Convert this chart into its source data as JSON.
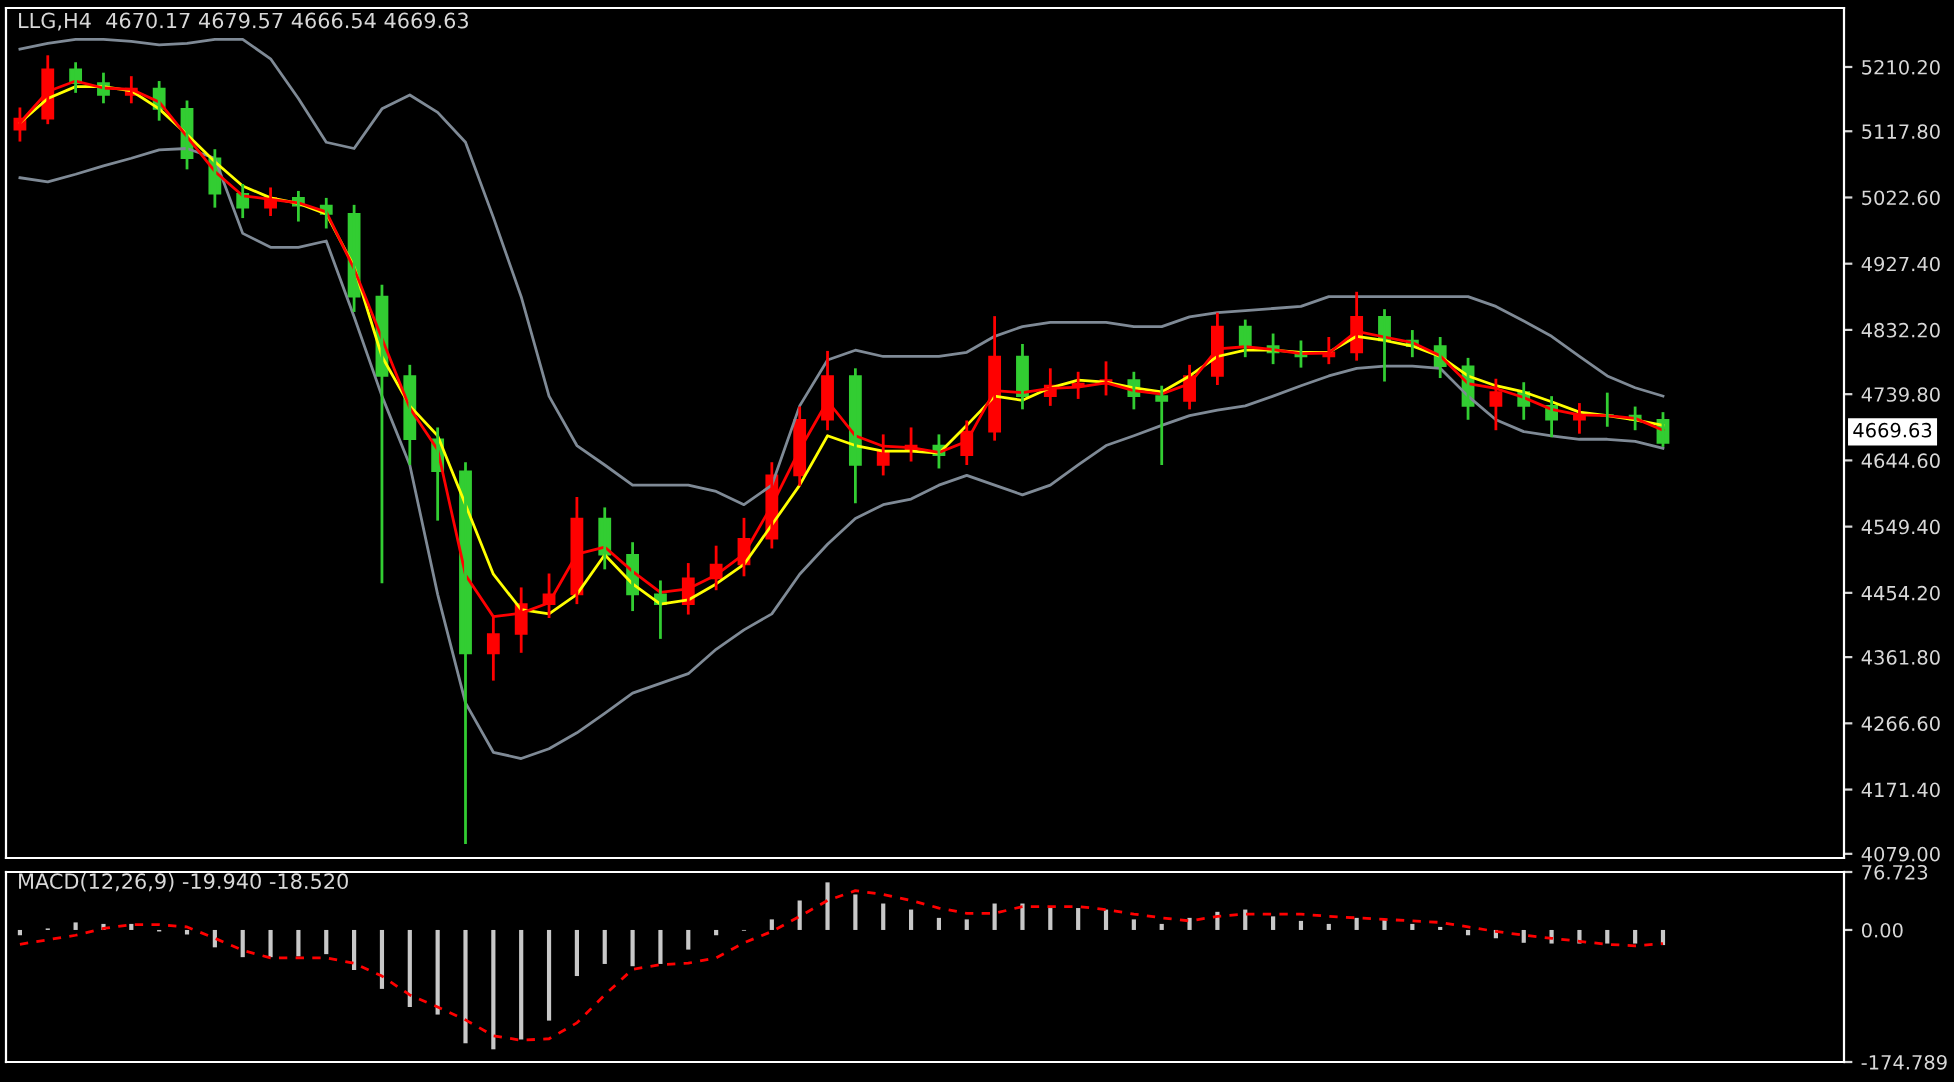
{
  "chart_data": [
    {
      "type": "candlestick",
      "title": "LLG,H4  4670.17 4679.57 4666.54 4669.63",
      "categories": [
        null,
        null,
        null,
        null,
        null,
        null,
        null,
        null,
        null,
        null,
        null,
        null,
        null,
        null,
        null,
        null,
        null,
        null,
        null,
        null,
        null,
        null,
        null,
        null,
        null,
        null,
        null,
        null,
        null,
        null,
        null,
        null,
        null,
        null,
        null,
        null,
        null,
        null,
        null,
        null,
        null,
        null,
        null,
        null,
        null,
        null,
        null,
        null,
        null,
        null,
        null,
        null,
        null,
        null,
        null,
        null,
        null,
        null,
        null,
        null
      ],
      "ohlc": [
        [
          5120,
          5150,
          5105,
          5136
        ],
        [
          5136,
          5225,
          5130,
          5207
        ],
        [
          5207,
          5215,
          5175,
          5187
        ],
        [
          5187,
          5200,
          5160,
          5170
        ],
        [
          5170,
          5195,
          5160,
          5179
        ],
        [
          5179,
          5188,
          5135,
          5150
        ],
        [
          5150,
          5160,
          5065,
          5079
        ],
        [
          5079,
          5090,
          5010,
          5028
        ],
        [
          5028,
          5040,
          4995,
          5008
        ],
        [
          5008,
          5035,
          4998,
          5022
        ],
        [
          5022,
          5030,
          4990,
          5011
        ],
        [
          5011,
          5020,
          4980,
          4999
        ],
        [
          4999,
          5010,
          4860,
          4880
        ],
        [
          4880,
          4895,
          4470,
          4766
        ],
        [
          4766,
          4780,
          4640,
          4675
        ],
        [
          4675,
          4690,
          4560,
          4629
        ],
        [
          4629,
          4640,
          4095,
          4367
        ],
        [
          4367,
          4420,
          4330,
          4395
        ],
        [
          4395,
          4460,
          4370,
          4438
        ],
        [
          4438,
          4480,
          4420,
          4452
        ],
        [
          4452,
          4590,
          4440,
          4561
        ],
        [
          4561,
          4575,
          4490,
          4509
        ],
        [
          4509,
          4525,
          4430,
          4452
        ],
        [
          4452,
          4470,
          4390,
          4438
        ],
        [
          4438,
          4495,
          4425,
          4475
        ],
        [
          4475,
          4520,
          4460,
          4495
        ],
        [
          4495,
          4560,
          4480,
          4532
        ],
        [
          4532,
          4640,
          4520,
          4623
        ],
        [
          4623,
          4720,
          4610,
          4703
        ],
        [
          4703,
          4800,
          4690,
          4766
        ],
        [
          4766,
          4775,
          4585,
          4638
        ],
        [
          4638,
          4680,
          4625,
          4658
        ],
        [
          4658,
          4690,
          4645,
          4666
        ],
        [
          4666,
          4680,
          4635,
          4652
        ],
        [
          4652,
          4700,
          4640,
          4686
        ],
        [
          4686,
          4850,
          4675,
          4794
        ],
        [
          4794,
          4810,
          4720,
          4737
        ],
        [
          4737,
          4775,
          4725,
          4752
        ],
        [
          4752,
          4770,
          4735,
          4755
        ],
        [
          4755,
          4785,
          4740,
          4760
        ],
        [
          4760,
          4770,
          4720,
          4737
        ],
        [
          4737,
          4750,
          4640,
          4730
        ],
        [
          4730,
          4780,
          4720,
          4766
        ],
        [
          4766,
          4855,
          4755,
          4837
        ],
        [
          4837,
          4845,
          4795,
          4809
        ],
        [
          4809,
          4825,
          4785,
          4800
        ],
        [
          4800,
          4815,
          4780,
          4794
        ],
        [
          4794,
          4820,
          4785,
          4800
        ],
        [
          4800,
          4885,
          4790,
          4851
        ],
        [
          4851,
          4860,
          4760,
          4817
        ],
        [
          4817,
          4830,
          4795,
          4809
        ],
        [
          4809,
          4820,
          4765,
          4780
        ],
        [
          4780,
          4790,
          4705,
          4723
        ],
        [
          4723,
          4760,
          4690,
          4743
        ],
        [
          4743,
          4755,
          4705,
          4723
        ],
        [
          4723,
          4735,
          4680,
          4703
        ],
        [
          4703,
          4725,
          4685,
          4710
        ],
        [
          4710,
          4740,
          4695,
          4709
        ],
        [
          4709,
          4720,
          4690,
          4703
        ],
        [
          4703,
          4712,
          4666,
          4669.63
        ]
      ],
      "colors": [
        "#ff0000",
        "#ff0000",
        "#32cd32",
        "#32cd32",
        "#ff0000",
        "#32cd32",
        "#32cd32",
        "#32cd32",
        "#32cd32",
        "#ff0000",
        "#32cd32",
        "#32cd32",
        "#32cd32",
        "#32cd32",
        "#32cd32",
        "#32cd32",
        "#32cd32",
        "#ff0000",
        "#ff0000",
        "#ff0000",
        "#ff0000",
        "#32cd32",
        "#32cd32",
        "#32cd32",
        "#ff0000",
        "#ff0000",
        "#ff0000",
        "#ff0000",
        "#ff0000",
        "#ff0000",
        "#32cd32",
        "#ff0000",
        "#ff0000",
        "#32cd32",
        "#ff0000",
        "#ff0000",
        "#32cd32",
        "#ff0000",
        "#ff0000",
        "#ff0000",
        "#32cd32",
        "#32cd32",
        "#ff0000",
        "#ff0000",
        "#32cd32",
        "#32cd32",
        "#32cd32",
        "#ff0000",
        "#ff0000",
        "#32cd32",
        "#32cd32",
        "#32cd32",
        "#32cd32",
        "#ff0000",
        "#32cd32",
        "#32cd32",
        "#ff0000",
        "#32cd32",
        "#32cd32",
        "#32cd32"
      ],
      "series": [
        {
          "type": "line",
          "color": "#7f8a96",
          "values": [
            5236,
            5244,
            5250,
            5250,
            5247,
            5242,
            5244,
            5250,
            5250,
            5222,
            5165,
            5102,
            5093,
            5150,
            5170,
            5145,
            5102,
            4994,
            4880,
            4737,
            4666,
            4638,
            4609,
            4609,
            4609,
            4600,
            4581,
            4609,
            4723,
            4789,
            4803,
            4794,
            4794,
            4794,
            4800,
            4823,
            4837,
            4843,
            4843,
            4843,
            4837,
            4837,
            4851,
            4857,
            4860,
            4863,
            4866,
            4880,
            4880,
            4880,
            4880,
            4880,
            4880,
            4866,
            4845,
            4823,
            4794,
            4766,
            4749,
            4737
          ]
        },
        {
          "type": "line",
          "color": "#7f8a96",
          "values": [
            5051,
            5045,
            5056,
            5068,
            5079,
            5091,
            5093,
            5079,
            4971,
            4951,
            4951,
            4960,
            4851,
            4737,
            4638,
            4452,
            4296,
            4225,
            4216,
            4230,
            4253,
            4281,
            4310,
            4324,
            4338,
            4373,
            4401,
            4424,
            4481,
            4524,
            4561,
            4581,
            4589,
            4609,
            4623,
            4609,
            4595,
            4609,
            4638,
            4666,
            4680,
            4695,
            4709,
            4717,
            4723,
            4737,
            4752,
            4766,
            4777,
            4780,
            4780,
            4777,
            4737,
            4703,
            4686,
            4680,
            4675,
            4675,
            4672,
            4662
          ]
        },
        {
          "type": "line",
          "color": "#ffff00",
          "values": [
            5130,
            5165,
            5182,
            5182,
            5176,
            5150,
            5113,
            5074,
            5039,
            5022,
            5014,
            4999,
            4923,
            4794,
            4723,
            4680,
            4581,
            4481,
            4430,
            4424,
            4452,
            4509,
            4467,
            4438,
            4444,
            4467,
            4495,
            4552,
            4609,
            4680,
            4666,
            4658,
            4658,
            4655,
            4695,
            4737,
            4731,
            4749,
            4760,
            4757,
            4749,
            4743,
            4766,
            4794,
            4803,
            4803,
            4800,
            4800,
            4823,
            4817,
            4809,
            4794,
            4766,
            4752,
            4743,
            4729,
            4714,
            4709,
            4703,
            4695
          ]
        },
        {
          "type": "line",
          "color": "#ff0000",
          "values": [
            5130,
            5175,
            5190,
            5180,
            5178,
            5160,
            5110,
            5060,
            5025,
            5020,
            5015,
            5002,
            4920,
            4820,
            4720,
            4660,
            4480,
            4420,
            4425,
            4440,
            4510,
            4520,
            4485,
            4455,
            4460,
            4480,
            4510,
            4580,
            4660,
            4730,
            4680,
            4665,
            4663,
            4656,
            4672,
            4745,
            4742,
            4748,
            4750,
            4756,
            4745,
            4740,
            4755,
            4805,
            4808,
            4804,
            4798,
            4799,
            4830,
            4822,
            4814,
            4795,
            4755,
            4748,
            4735,
            4718,
            4710,
            4709,
            4705,
            4688
          ]
        }
      ],
      "ylim": [
        4073,
        5295
      ],
      "yticks": [
        {
          "value": 5210.2,
          "label": "5210.20"
        },
        {
          "value": 5117.8,
          "label": "5117.80"
        },
        {
          "value": 5022.6,
          "label": "5022.60"
        },
        {
          "value": 4927.4,
          "label": "4927.40"
        },
        {
          "value": 4832.2,
          "label": "4832.20"
        },
        {
          "value": 4739.8,
          "label": "4739.80"
        },
        {
          "value": 4644.6,
          "label": "4644.60"
        },
        {
          "value": 4549.4,
          "label": "4549.40"
        },
        {
          "value": 4454.2,
          "label": "4454.20"
        },
        {
          "value": 4361.8,
          "label": "4361.80"
        },
        {
          "value": 4266.6,
          "label": "4266.60"
        },
        {
          "value": 4171.4,
          "label": "4171.40"
        },
        {
          "value": 4079,
          "label": "4079.00"
        }
      ],
      "annotations": [
        "4669.63"
      ],
      "tick_labels": "y",
      "grid": false
    },
    {
      "type": "bar",
      "title": "MACD(12,26,9) -19.940 -18.520",
      "categories": [
        null,
        null,
        null,
        null,
        null,
        null,
        null,
        null,
        null,
        null,
        null,
        null,
        null,
        null,
        null,
        null,
        null,
        null,
        null,
        null,
        null,
        null,
        null,
        null,
        null,
        null,
        null,
        null,
        null,
        null,
        null,
        null,
        null,
        null,
        null,
        null,
        null,
        null,
        null,
        null,
        null,
        null,
        null,
        null,
        null,
        null,
        null,
        null,
        null,
        null,
        null,
        null,
        null,
        null,
        null,
        null,
        null,
        null,
        null,
        null
      ],
      "series": [
        {
          "type": "bar",
          "color": "#c8c8c8",
          "values": [
            -7,
            2,
            10,
            8,
            8,
            -2,
            -6,
            -23,
            -36,
            -36,
            -35,
            -32,
            -53,
            -78,
            -102,
            -112,
            -150,
            -158,
            -145,
            -120,
            -61,
            -45,
            -48,
            -45,
            -26,
            -7,
            -1,
            14,
            39,
            63,
            47,
            35,
            27,
            16,
            14,
            35,
            35,
            29,
            29,
            27,
            14,
            8,
            16,
            24,
            27,
            18,
            12,
            8,
            16,
            14,
            8,
            4,
            -7,
            -11,
            -17,
            -18,
            -18,
            -18,
            -18,
            -20
          ]
        },
        {
          "type": "line",
          "color": "#ff0000",
          "line_style": "dashed",
          "values": [
            -19,
            -13,
            -7,
            2,
            7,
            7,
            4,
            -11,
            -27,
            -37,
            -37,
            -37,
            -44,
            -61,
            -86,
            -102,
            -119,
            -140,
            -146,
            -144,
            -123,
            -86,
            -52,
            -46,
            -44,
            -37,
            -17,
            -2,
            18,
            39,
            52,
            47,
            39,
            29,
            22,
            22,
            31,
            31,
            31,
            27,
            21,
            16,
            12,
            18,
            21,
            21,
            21,
            18,
            16,
            14,
            12,
            10,
            4,
            -2,
            -7,
            -11,
            -15,
            -19,
            -21,
            -18
          ]
        }
      ],
      "ylim": [
        -174.789,
        76.723
      ],
      "yticks": [
        76.723,
        {
          "value": 0,
          "label": "0.00"
        },
        -174.789
      ],
      "tick_labels": "y",
      "grid": false
    }
  ]
}
